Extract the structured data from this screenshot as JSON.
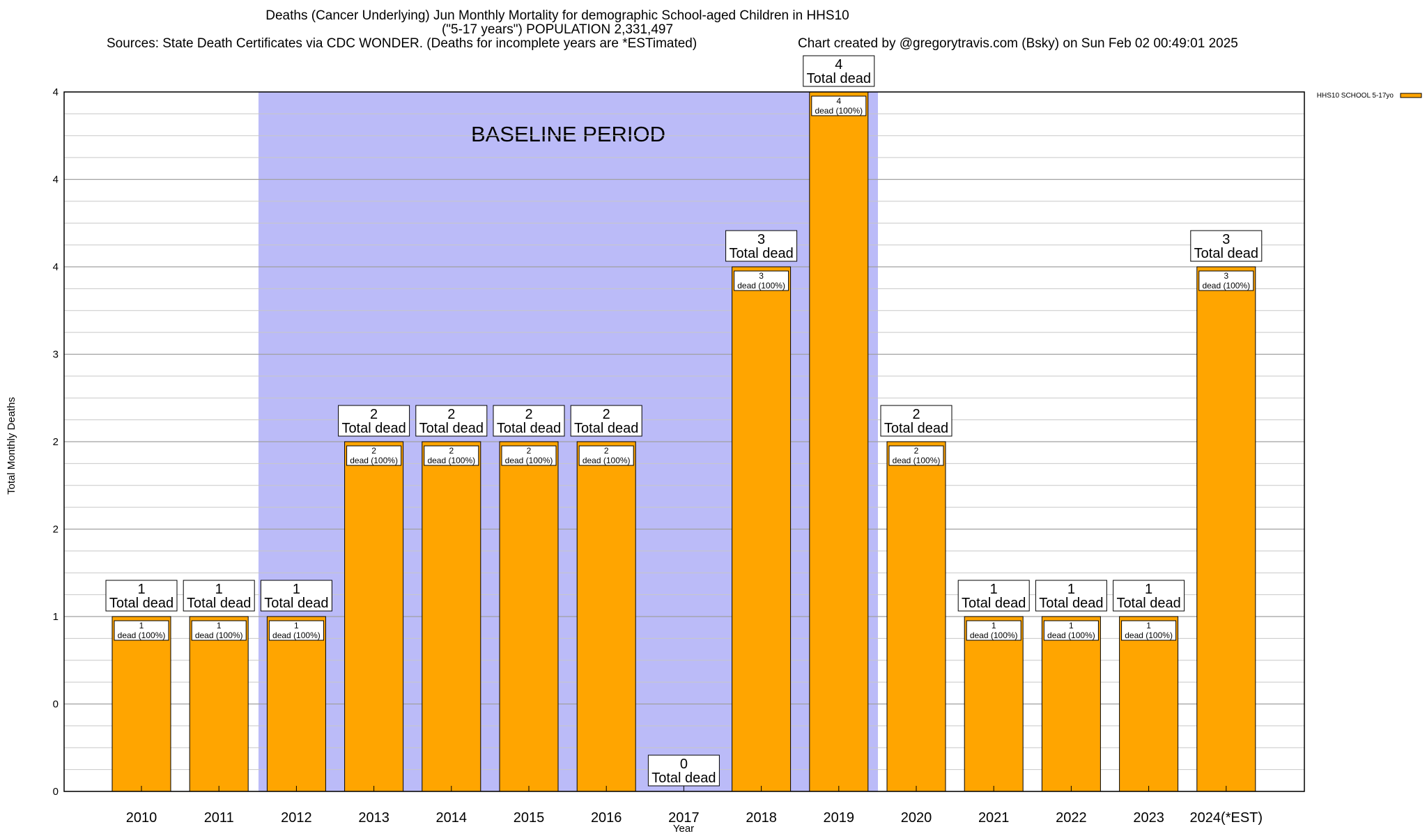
{
  "header": {
    "title_line1": "Deaths (Cancer Underlying) Jun Monthly Mortality for demographic School-aged Children in HHS10",
    "title_line2": "(\"5-17 years\") POPULATION 2,331,497",
    "sources": "Sources: State Death Certificates via CDC WONDER. (Deaths for incomplete years are *ESTimated)",
    "credit": "Chart created by @gregorytravis.com (Bsky) on Sun Feb 02 00:49:01 2025"
  },
  "chart_data": {
    "type": "bar",
    "xlabel": "Year",
    "ylabel": "Total Monthly Deaths",
    "categories": [
      "2010",
      "2011",
      "2012",
      "2013",
      "2014",
      "2015",
      "2016",
      "2017",
      "2018",
      "2019",
      "2020",
      "2021",
      "2022",
      "2023",
      "2024(*EST)"
    ],
    "series": [
      {
        "name": "HHS10 SCHOOL 5-17yo",
        "values": [
          1,
          1,
          1,
          2,
          2,
          2,
          2,
          0,
          3,
          4,
          2,
          1,
          1,
          1,
          3
        ],
        "color": "#FFA500"
      }
    ],
    "ylim": [
      0,
      4
    ],
    "y_tick_labels": [
      "0",
      "0",
      "1",
      "2",
      "2",
      "3",
      "4",
      "4"
    ],
    "total_label_text": "Total dead",
    "bar_label_suffix": "dead (100%)",
    "baseline": {
      "label": "BASELINE PERIOD",
      "from": "2012",
      "to": "2019",
      "color": "#BBBBF8"
    },
    "grid": true,
    "legend_placement": "top-right"
  }
}
